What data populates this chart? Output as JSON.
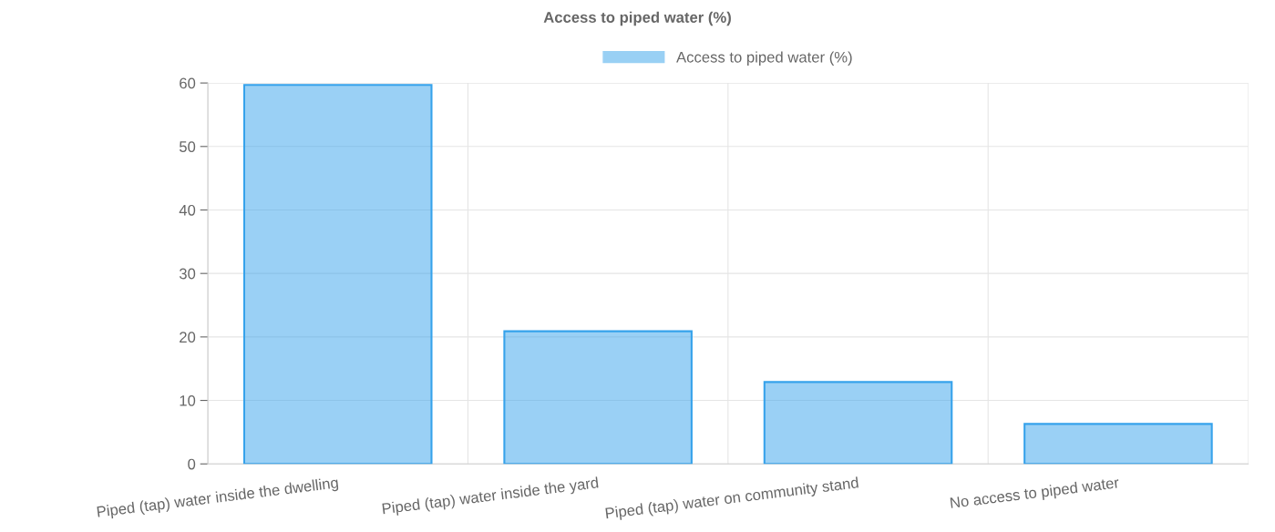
{
  "chart_data": {
    "type": "bar",
    "title": "Access to piped water (%)",
    "categories": [
      "Piped (tap) water inside the dwelling",
      "Piped (tap) water inside the yard",
      "Piped (tap) water on community stand",
      "No access to piped water"
    ],
    "series": [
      {
        "name": "Access to piped water (%)",
        "color": "#36a2eb",
        "values": [
          59.7,
          20.9,
          12.9,
          6.3
        ]
      }
    ],
    "ylim": [
      0,
      60
    ],
    "yticks": [
      0,
      10,
      20,
      30,
      40,
      50,
      60
    ],
    "grid": true,
    "legend": "top"
  }
}
